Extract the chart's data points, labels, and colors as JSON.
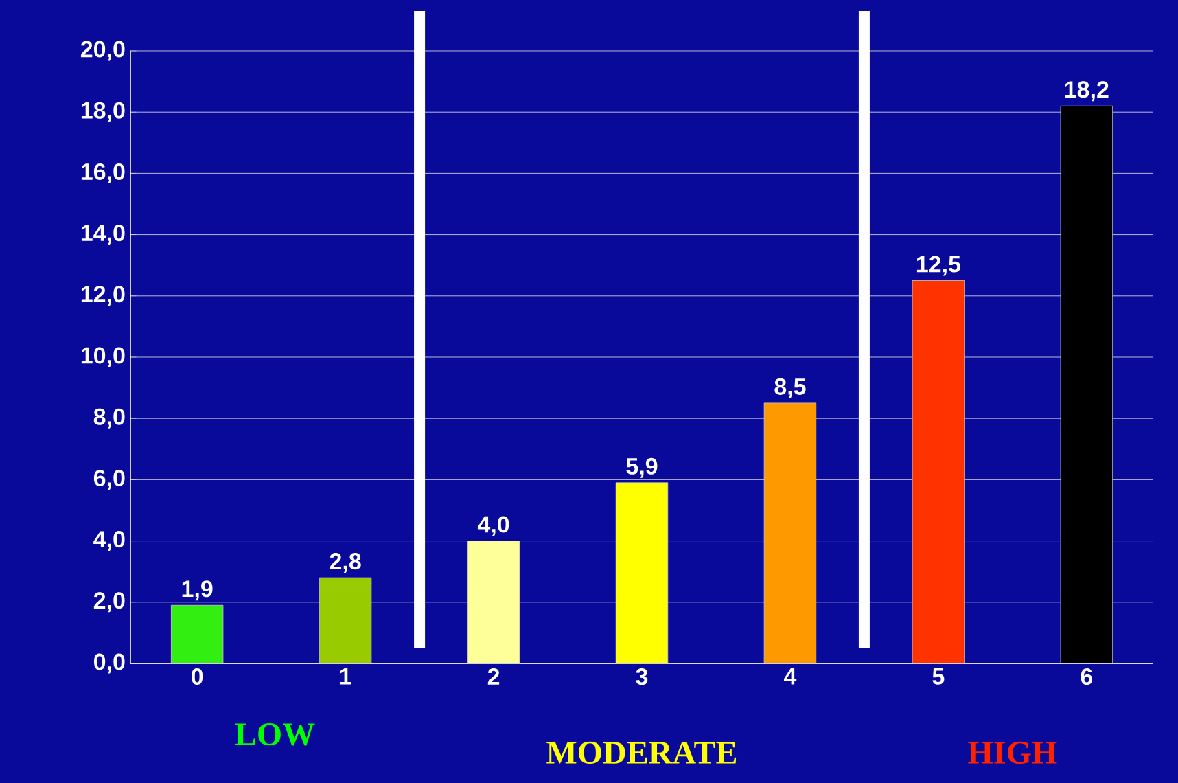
{
  "chart_data": {
    "type": "bar",
    "categories": [
      "0",
      "1",
      "2",
      "3",
      "4",
      "5",
      "6"
    ],
    "values": [
      1.9,
      2.8,
      4.0,
      5.9,
      8.5,
      12.5,
      18.2
    ],
    "value_labels": [
      "1,9",
      "2,8",
      "4,0",
      "5,9",
      "8,5",
      "12,5",
      "18,2"
    ],
    "colors": [
      "#33ee11",
      "#99cc00",
      "#ffff99",
      "#ffff00",
      "#ff9900",
      "#ff3300",
      "#000000"
    ],
    "ylim": [
      0,
      20
    ],
    "yticks": [
      {
        "value": 0,
        "label": "0,0"
      },
      {
        "value": 2,
        "label": "2,0"
      },
      {
        "value": 4,
        "label": "4,0"
      },
      {
        "value": 6,
        "label": "6,0"
      },
      {
        "value": 8,
        "label": "8,0"
      },
      {
        "value": 10,
        "label": "10,0"
      },
      {
        "value": 12,
        "label": "12,0"
      },
      {
        "value": 14,
        "label": "14,0"
      },
      {
        "value": 16,
        "label": "16,0"
      },
      {
        "value": 18,
        "label": "18,0"
      },
      {
        "value": 20,
        "label": "20,0"
      }
    ],
    "grid": "y",
    "annotations": [
      "LOW",
      "MODERATE",
      "HIGH"
    ]
  }
}
